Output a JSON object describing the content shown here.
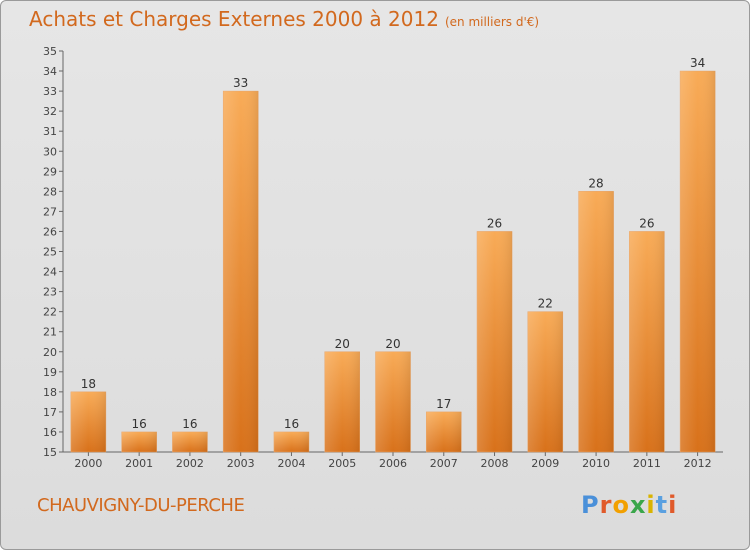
{
  "title": "Achats et Charges Externes 2000 à 2012",
  "unit": "(en milliers d'€)",
  "commune": "CHAUVIGNY-DU-PERCHE",
  "logo": "Proxiti",
  "colors": {
    "bar_top": "#f6a44e",
    "bar_bottom": "#d9741c",
    "title": "#d2691e",
    "axis": "#555555"
  },
  "chart_data": {
    "type": "bar",
    "title": "Achats et Charges Externes 2000 à 2012",
    "subtitle": "(en milliers d'€)",
    "categories": [
      "2000",
      "2001",
      "2002",
      "2003",
      "2004",
      "2005",
      "2006",
      "2007",
      "2008",
      "2009",
      "2010",
      "2011",
      "2012"
    ],
    "values": [
      18,
      16,
      16,
      33,
      16,
      20,
      20,
      17,
      26,
      22,
      28,
      26,
      34
    ],
    "ylim": [
      15,
      35
    ],
    "yticks": [
      15,
      16,
      17,
      18,
      19,
      20,
      21,
      22,
      23,
      24,
      25,
      26,
      27,
      28,
      29,
      30,
      31,
      32,
      33,
      34,
      35
    ],
    "grid": false,
    "data_labels": true
  }
}
